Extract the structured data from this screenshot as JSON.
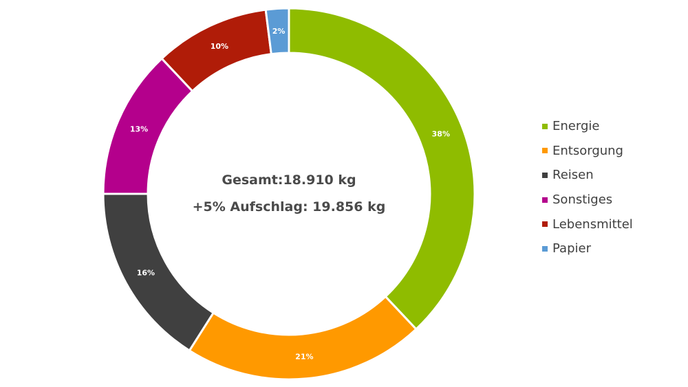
{
  "chart_data": {
    "type": "pie",
    "donut": true,
    "title": "",
    "legend_position": "right",
    "center_text": {
      "line1": "Gesamt:18.910 kg",
      "line2": "+5% Aufschlag: 19.856 kg"
    },
    "slices": [
      {
        "name": "Energie",
        "value": 38,
        "label": "38%",
        "color": "#8fbc00"
      },
      {
        "name": "Entsorgung",
        "value": 21,
        "label": "21%",
        "color": "#ff9900"
      },
      {
        "name": "Reisen",
        "value": 16,
        "label": "16%",
        "color": "#404040"
      },
      {
        "name": "Sonstiges",
        "value": 13,
        "label": "13%",
        "color": "#b4008c"
      },
      {
        "name": "Lebensmittel",
        "value": 10,
        "label": "10%",
        "color": "#b01c08"
      },
      {
        "name": "Papier",
        "value": 2,
        "label": "2%",
        "color": "#5b9bd5"
      }
    ]
  }
}
